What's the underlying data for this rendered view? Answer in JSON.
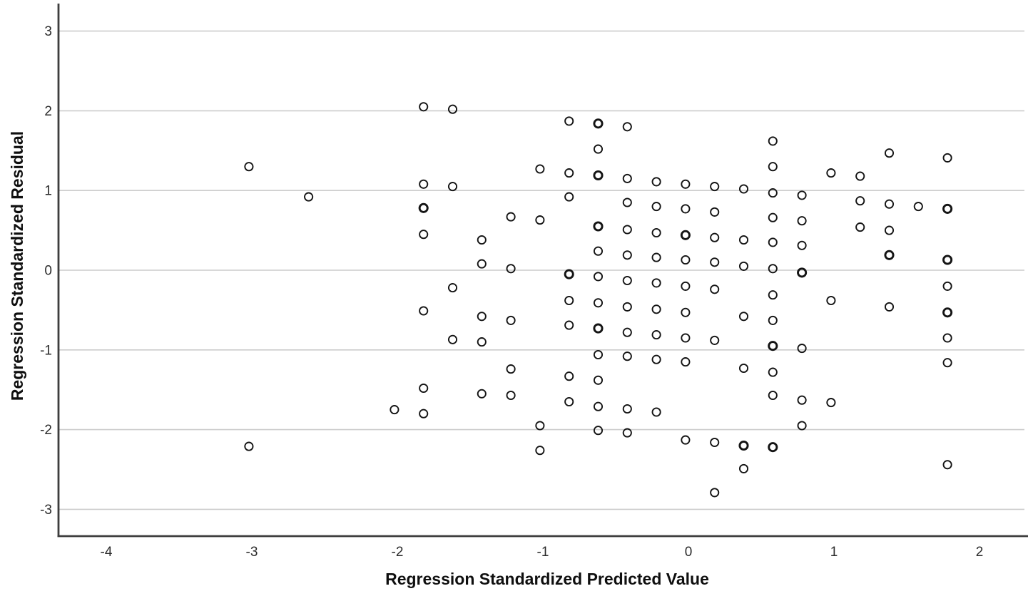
{
  "chart_data": {
    "type": "scatter",
    "title": "",
    "xlabel": "Regression Standardized Predicted Value",
    "ylabel": "Regression Standardized Residual",
    "x_ticks": [
      -4,
      -3,
      -2,
      -1,
      0,
      1,
      2
    ],
    "y_ticks": [
      3,
      2,
      1,
      0,
      -1,
      -2,
      -3
    ],
    "xlim": [
      -4.33,
      2.33
    ],
    "ylim": [
      -3.35,
      3.34
    ],
    "grid": "horizontal-gridlines-only",
    "legend": "none",
    "marker": {
      "shape": "open-circle",
      "fill": "none",
      "stroke_color": "#141414",
      "radius_px": 5.6,
      "overplot_note": "third array element 1 marks darker markers (overlapping cases)"
    },
    "colors": {
      "background": "#ffffff",
      "gridline": "#cccccc",
      "axis_line": "#3d3d3d",
      "tick_label": "#2b2b2b",
      "axis_title": "#0f0f0f"
    },
    "points": [
      [
        -3.02,
        1.3
      ],
      [
        -3.02,
        -2.21
      ],
      [
        -2.61,
        0.92
      ],
      [
        -2.02,
        -1.75
      ],
      [
        -1.82,
        2.05
      ],
      [
        -1.82,
        1.08
      ],
      [
        -1.82,
        0.78,
        1
      ],
      [
        -1.82,
        0.45
      ],
      [
        -1.82,
        -0.51
      ],
      [
        -1.82,
        -1.48
      ],
      [
        -1.82,
        -1.8
      ],
      [
        -1.62,
        2.02
      ],
      [
        -1.62,
        1.05
      ],
      [
        -1.62,
        -0.22
      ],
      [
        -1.62,
        -0.87
      ],
      [
        -1.42,
        0.38
      ],
      [
        -1.42,
        0.08
      ],
      [
        -1.42,
        -0.58
      ],
      [
        -1.42,
        -0.9
      ],
      [
        -1.42,
        -1.55
      ],
      [
        -1.22,
        0.67
      ],
      [
        -1.22,
        0.02
      ],
      [
        -1.22,
        -0.63
      ],
      [
        -1.22,
        -1.24
      ],
      [
        -1.22,
        -1.57
      ],
      [
        -1.02,
        1.27
      ],
      [
        -1.02,
        0.63
      ],
      [
        -1.02,
        -1.95
      ],
      [
        -1.02,
        -2.26
      ],
      [
        -0.82,
        1.87
      ],
      [
        -0.82,
        1.22
      ],
      [
        -0.82,
        0.92
      ],
      [
        -0.82,
        -0.05,
        1
      ],
      [
        -0.82,
        -0.38
      ],
      [
        -0.82,
        -0.69
      ],
      [
        -0.82,
        -1.33
      ],
      [
        -0.82,
        -1.65
      ],
      [
        -0.62,
        1.84,
        1
      ],
      [
        -0.62,
        1.52
      ],
      [
        -0.62,
        1.19,
        1
      ],
      [
        -0.62,
        0.55,
        1
      ],
      [
        -0.62,
        0.24
      ],
      [
        -0.62,
        -0.08
      ],
      [
        -0.62,
        -0.41
      ],
      [
        -0.62,
        -0.73,
        1
      ],
      [
        -0.62,
        -1.06
      ],
      [
        -0.62,
        -1.38
      ],
      [
        -0.62,
        -1.71
      ],
      [
        -0.62,
        -2.01
      ],
      [
        -0.42,
        1.8
      ],
      [
        -0.42,
        1.15
      ],
      [
        -0.42,
        0.85
      ],
      [
        -0.42,
        0.51
      ],
      [
        -0.42,
        0.19
      ],
      [
        -0.42,
        -0.13
      ],
      [
        -0.42,
        -0.46
      ],
      [
        -0.42,
        -0.78
      ],
      [
        -0.42,
        -1.08
      ],
      [
        -0.42,
        -1.74
      ],
      [
        -0.42,
        -2.04
      ],
      [
        -0.22,
        1.11
      ],
      [
        -0.22,
        0.8
      ],
      [
        -0.22,
        0.47
      ],
      [
        -0.22,
        0.16
      ],
      [
        -0.22,
        -0.16
      ],
      [
        -0.22,
        -0.49
      ],
      [
        -0.22,
        -0.81
      ],
      [
        -0.22,
        -1.12
      ],
      [
        -0.22,
        -1.78
      ],
      [
        -0.02,
        1.08
      ],
      [
        -0.02,
        0.77
      ],
      [
        -0.02,
        0.44,
        1
      ],
      [
        -0.02,
        0.13
      ],
      [
        -0.02,
        -0.2
      ],
      [
        -0.02,
        -0.53
      ],
      [
        -0.02,
        -0.85
      ],
      [
        -0.02,
        -1.15
      ],
      [
        -0.02,
        -2.13
      ],
      [
        0.18,
        1.05
      ],
      [
        0.18,
        0.73
      ],
      [
        0.18,
        0.41
      ],
      [
        0.18,
        0.1
      ],
      [
        0.18,
        -0.24
      ],
      [
        0.18,
        -0.88
      ],
      [
        0.18,
        -2.16
      ],
      [
        0.18,
        -2.79
      ],
      [
        0.38,
        1.02
      ],
      [
        0.38,
        0.38
      ],
      [
        0.38,
        0.05
      ],
      [
        0.38,
        -0.58
      ],
      [
        0.38,
        -1.23
      ],
      [
        0.38,
        -2.2,
        1
      ],
      [
        0.38,
        -2.49
      ],
      [
        0.58,
        1.62
      ],
      [
        0.58,
        1.3
      ],
      [
        0.58,
        0.97
      ],
      [
        0.58,
        0.66
      ],
      [
        0.58,
        0.35
      ],
      [
        0.58,
        0.02
      ],
      [
        0.58,
        -0.31
      ],
      [
        0.58,
        -0.63
      ],
      [
        0.58,
        -0.95,
        1
      ],
      [
        0.58,
        -1.28
      ],
      [
        0.58,
        -1.57
      ],
      [
        0.58,
        -2.22,
        1
      ],
      [
        0.78,
        0.94
      ],
      [
        0.78,
        0.62
      ],
      [
        0.78,
        0.31
      ],
      [
        0.78,
        -0.03,
        1
      ],
      [
        0.78,
        -0.98
      ],
      [
        0.78,
        -1.63
      ],
      [
        0.78,
        -1.95
      ],
      [
        0.98,
        1.22
      ],
      [
        0.98,
        -0.38
      ],
      [
        0.98,
        -1.66
      ],
      [
        1.18,
        1.18
      ],
      [
        1.18,
        0.87
      ],
      [
        1.18,
        0.54
      ],
      [
        1.38,
        1.47
      ],
      [
        1.38,
        0.83
      ],
      [
        1.38,
        0.5
      ],
      [
        1.38,
        0.19,
        1
      ],
      [
        1.38,
        -0.46
      ],
      [
        1.58,
        0.8
      ],
      [
        1.78,
        1.41
      ],
      [
        1.78,
        0.77,
        1
      ],
      [
        1.78,
        0.13,
        1
      ],
      [
        1.78,
        -0.2
      ],
      [
        1.78,
        -0.53,
        1
      ],
      [
        1.78,
        -0.85
      ],
      [
        1.78,
        -1.16
      ],
      [
        1.78,
        -2.44
      ]
    ]
  }
}
